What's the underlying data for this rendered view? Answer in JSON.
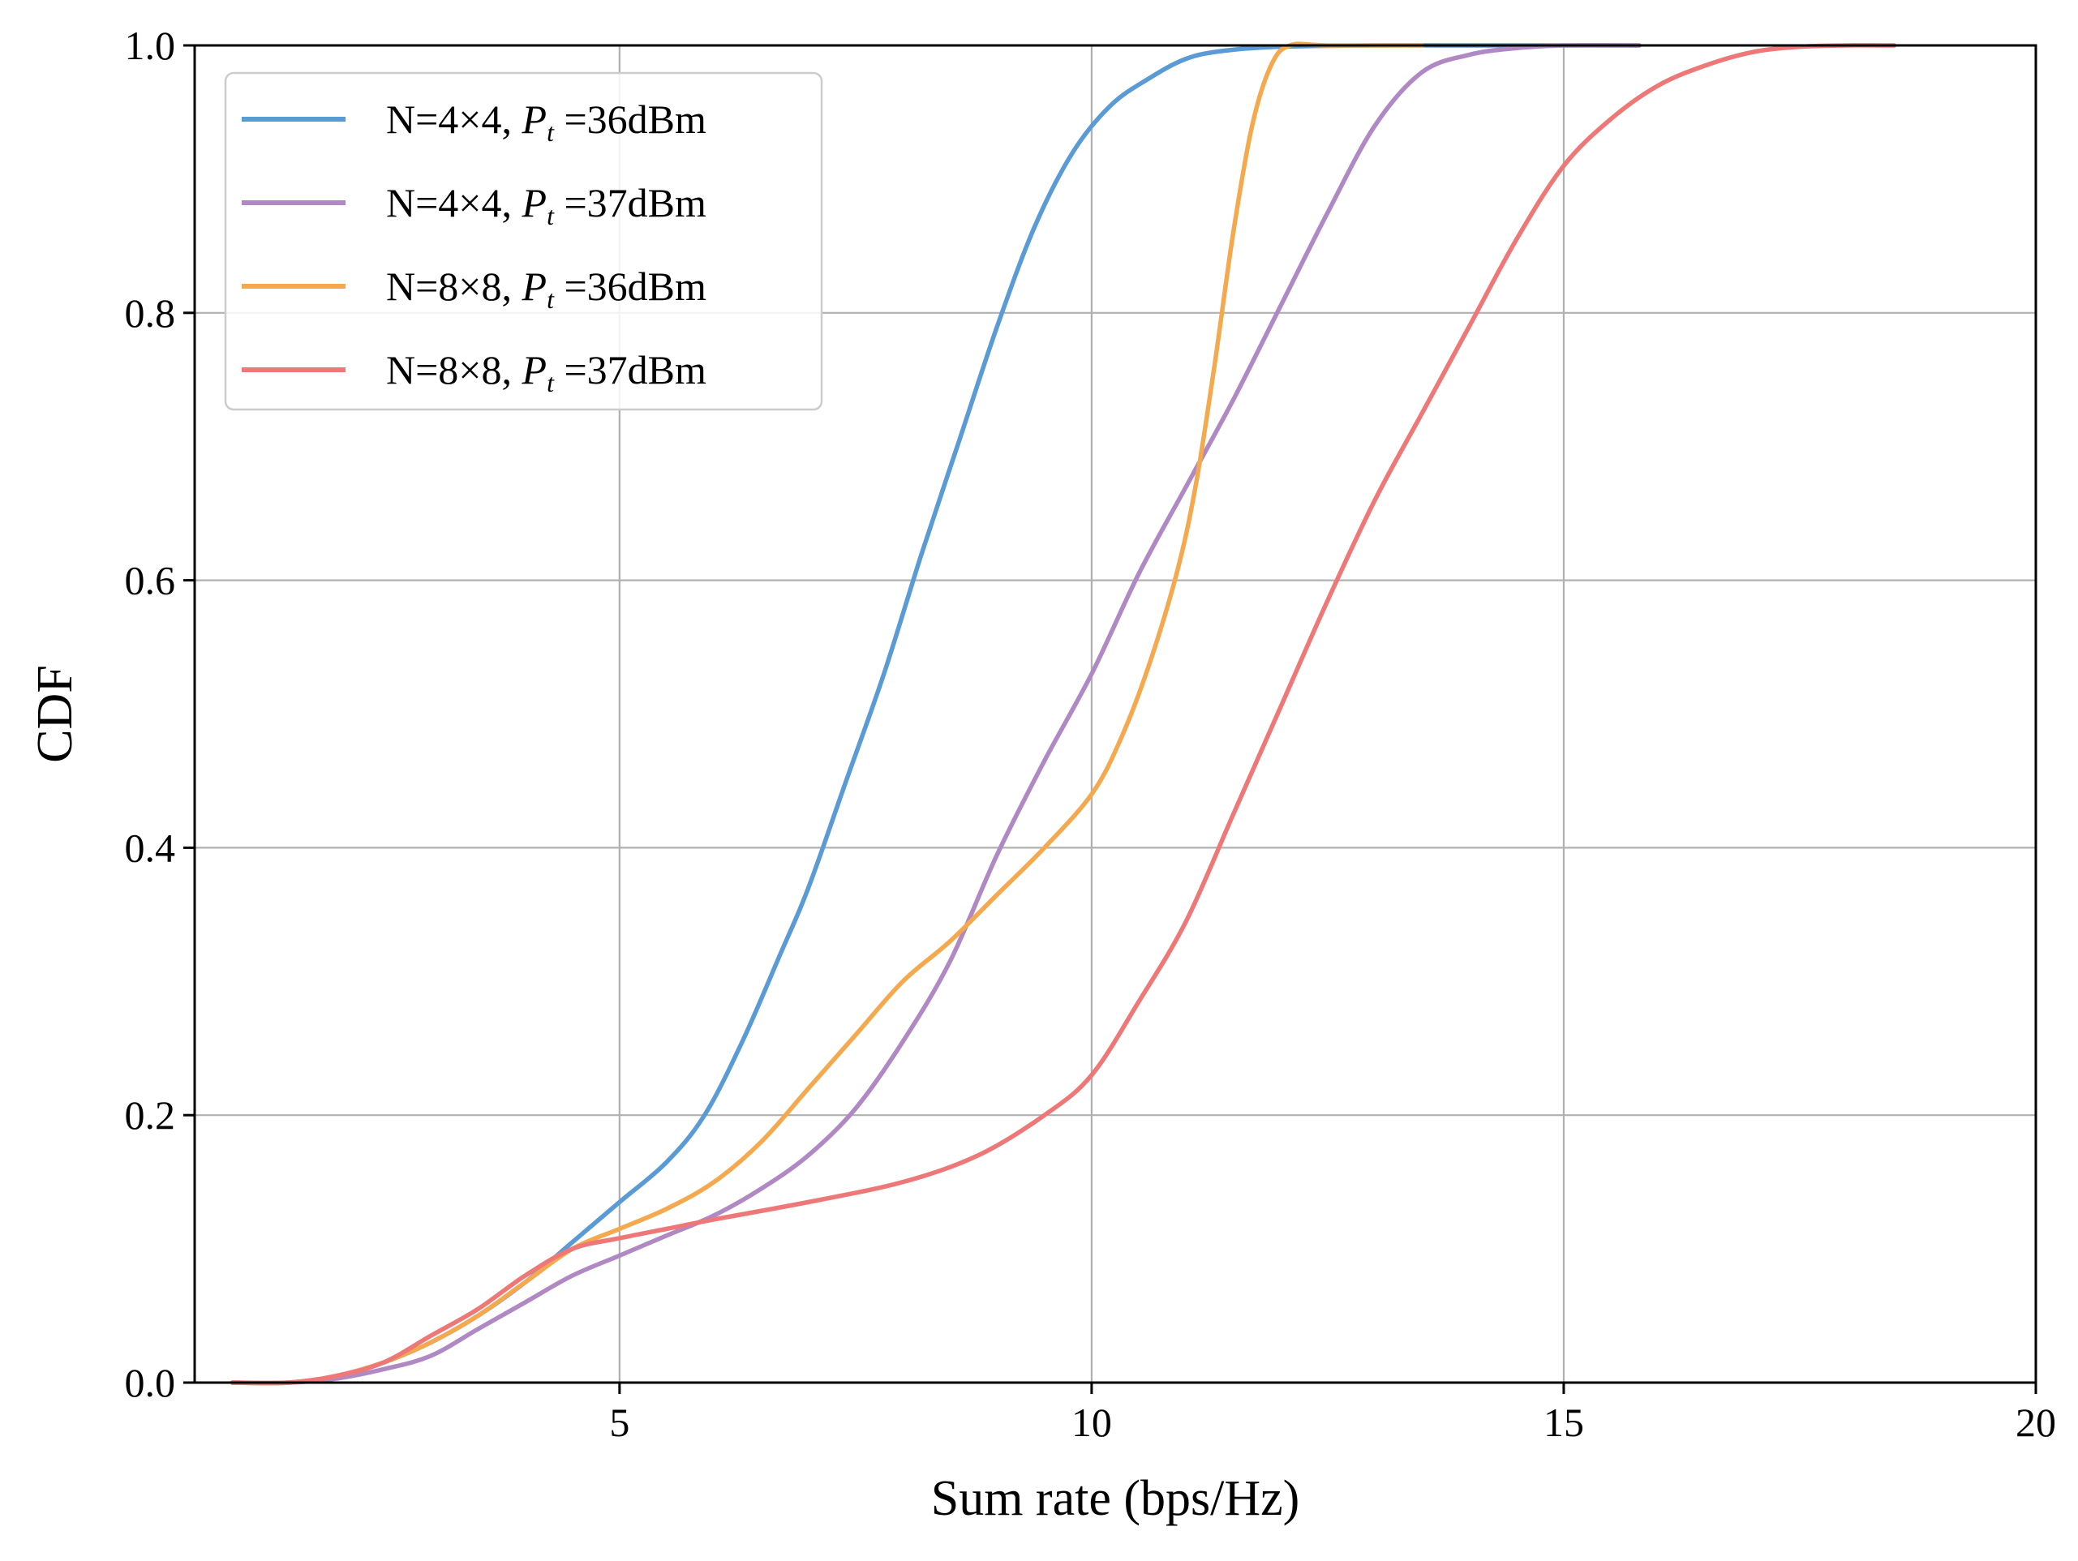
{
  "chart_data": {
    "type": "line",
    "title": "",
    "xlabel": "Sum rate (bps/Hz)",
    "ylabel": "CDF",
    "xlim": [
      0.5,
      20
    ],
    "ylim": [
      0.0,
      1.0
    ],
    "xticks": [
      5,
      10,
      15,
      20
    ],
    "xtick_labels": [
      "5",
      "10",
      "15",
      "20"
    ],
    "yticks": [
      0.0,
      0.2,
      0.4,
      0.6,
      0.8,
      1.0
    ],
    "ytick_labels": [
      "0.0",
      "0.2",
      "0.4",
      "0.6",
      "0.8",
      "1.0"
    ],
    "grid": true,
    "legend_position": "top-left",
    "series": [
      {
        "name": "N=4×4, Pt =36dBm",
        "legend_prefix": "N=4×4, ",
        "legend_symbol": "P",
        "legend_subscript": "t",
        "legend_suffix": " =36dBm",
        "color": "#5b9bd5",
        "x": [
          0.9,
          1.5,
          2.0,
          2.5,
          3.0,
          3.5,
          4.0,
          4.5,
          5.0,
          5.5,
          5.9,
          6.3,
          6.7,
          7.0,
          7.4,
          7.8,
          8.2,
          8.6,
          9.0,
          9.4,
          9.8,
          10.2,
          10.6,
          11.0,
          11.4,
          12.0,
          13.0,
          14.0,
          15.8
        ],
        "y": [
          0.0,
          0.0,
          0.005,
          0.015,
          0.03,
          0.05,
          0.075,
          0.105,
          0.135,
          0.165,
          0.2,
          0.255,
          0.32,
          0.37,
          0.45,
          0.53,
          0.62,
          0.705,
          0.79,
          0.865,
          0.92,
          0.955,
          0.975,
          0.99,
          0.996,
          0.999,
          1.0,
          1.0,
          1.0
        ]
      },
      {
        "name": "N=4×4, Pt =37dBm",
        "legend_prefix": "N=4×4, ",
        "legend_symbol": "P",
        "legend_subscript": "t",
        "legend_suffix": " =37dBm",
        "color": "#b088c4",
        "x": [
          0.9,
          1.5,
          2.0,
          2.5,
          3.0,
          3.5,
          4.0,
          4.5,
          5.0,
          5.5,
          6.0,
          6.5,
          7.0,
          7.5,
          8.0,
          8.5,
          9.0,
          9.5,
          10.0,
          10.5,
          11.0,
          11.5,
          12.0,
          12.5,
          13.0,
          13.5,
          14.0,
          14.5,
          15.0,
          15.8
        ],
        "y": [
          0.0,
          0.0,
          0.003,
          0.01,
          0.02,
          0.04,
          0.06,
          0.08,
          0.095,
          0.11,
          0.125,
          0.145,
          0.17,
          0.205,
          0.255,
          0.315,
          0.395,
          0.465,
          0.53,
          0.605,
          0.67,
          0.735,
          0.805,
          0.875,
          0.94,
          0.98,
          0.993,
          0.998,
          1.0,
          1.0
        ]
      },
      {
        "name": "N=8×8, Pt =36dBm",
        "legend_prefix": "N=8×8, ",
        "legend_symbol": "P",
        "legend_subscript": "t",
        "legend_suffix": " =36dBm",
        "color": "#f5a94e",
        "x": [
          0.9,
          1.5,
          2.0,
          2.5,
          3.0,
          3.5,
          4.0,
          4.5,
          5.0,
          5.5,
          6.0,
          6.5,
          7.0,
          7.5,
          8.0,
          8.5,
          9.0,
          9.5,
          10.0,
          10.3,
          10.6,
          10.9,
          11.1,
          11.3,
          11.5,
          11.7,
          11.9,
          12.1,
          12.5,
          13.5
        ],
        "y": [
          0.0,
          0.0,
          0.005,
          0.015,
          0.03,
          0.05,
          0.075,
          0.1,
          0.115,
          0.13,
          0.15,
          0.18,
          0.22,
          0.26,
          0.3,
          0.33,
          0.365,
          0.4,
          0.44,
          0.48,
          0.535,
          0.605,
          0.67,
          0.76,
          0.86,
          0.94,
          0.985,
          1.0,
          1.0,
          1.0
        ]
      },
      {
        "name": "N=8×8, Pt =37dBm",
        "legend_prefix": "N=8×8, ",
        "legend_symbol": "P",
        "legend_subscript": "t",
        "legend_suffix": " =37dBm",
        "color": "#ee7777",
        "x": [
          0.9,
          1.5,
          2.0,
          2.5,
          3.0,
          3.5,
          4.0,
          4.5,
          5.0,
          5.5,
          6.0,
          7.0,
          8.0,
          8.8,
          9.5,
          10.0,
          10.5,
          11.0,
          11.5,
          12.0,
          12.5,
          13.0,
          13.5,
          14.0,
          14.5,
          15.0,
          15.5,
          16.0,
          16.5,
          17.0,
          17.5,
          18.0,
          18.5
        ],
        "y": [
          0.0,
          0.0,
          0.005,
          0.015,
          0.035,
          0.055,
          0.08,
          0.1,
          0.108,
          0.115,
          0.122,
          0.135,
          0.15,
          0.17,
          0.2,
          0.23,
          0.285,
          0.345,
          0.425,
          0.505,
          0.585,
          0.66,
          0.725,
          0.79,
          0.855,
          0.91,
          0.945,
          0.97,
          0.985,
          0.995,
          0.999,
          1.0,
          1.0
        ]
      }
    ]
  }
}
